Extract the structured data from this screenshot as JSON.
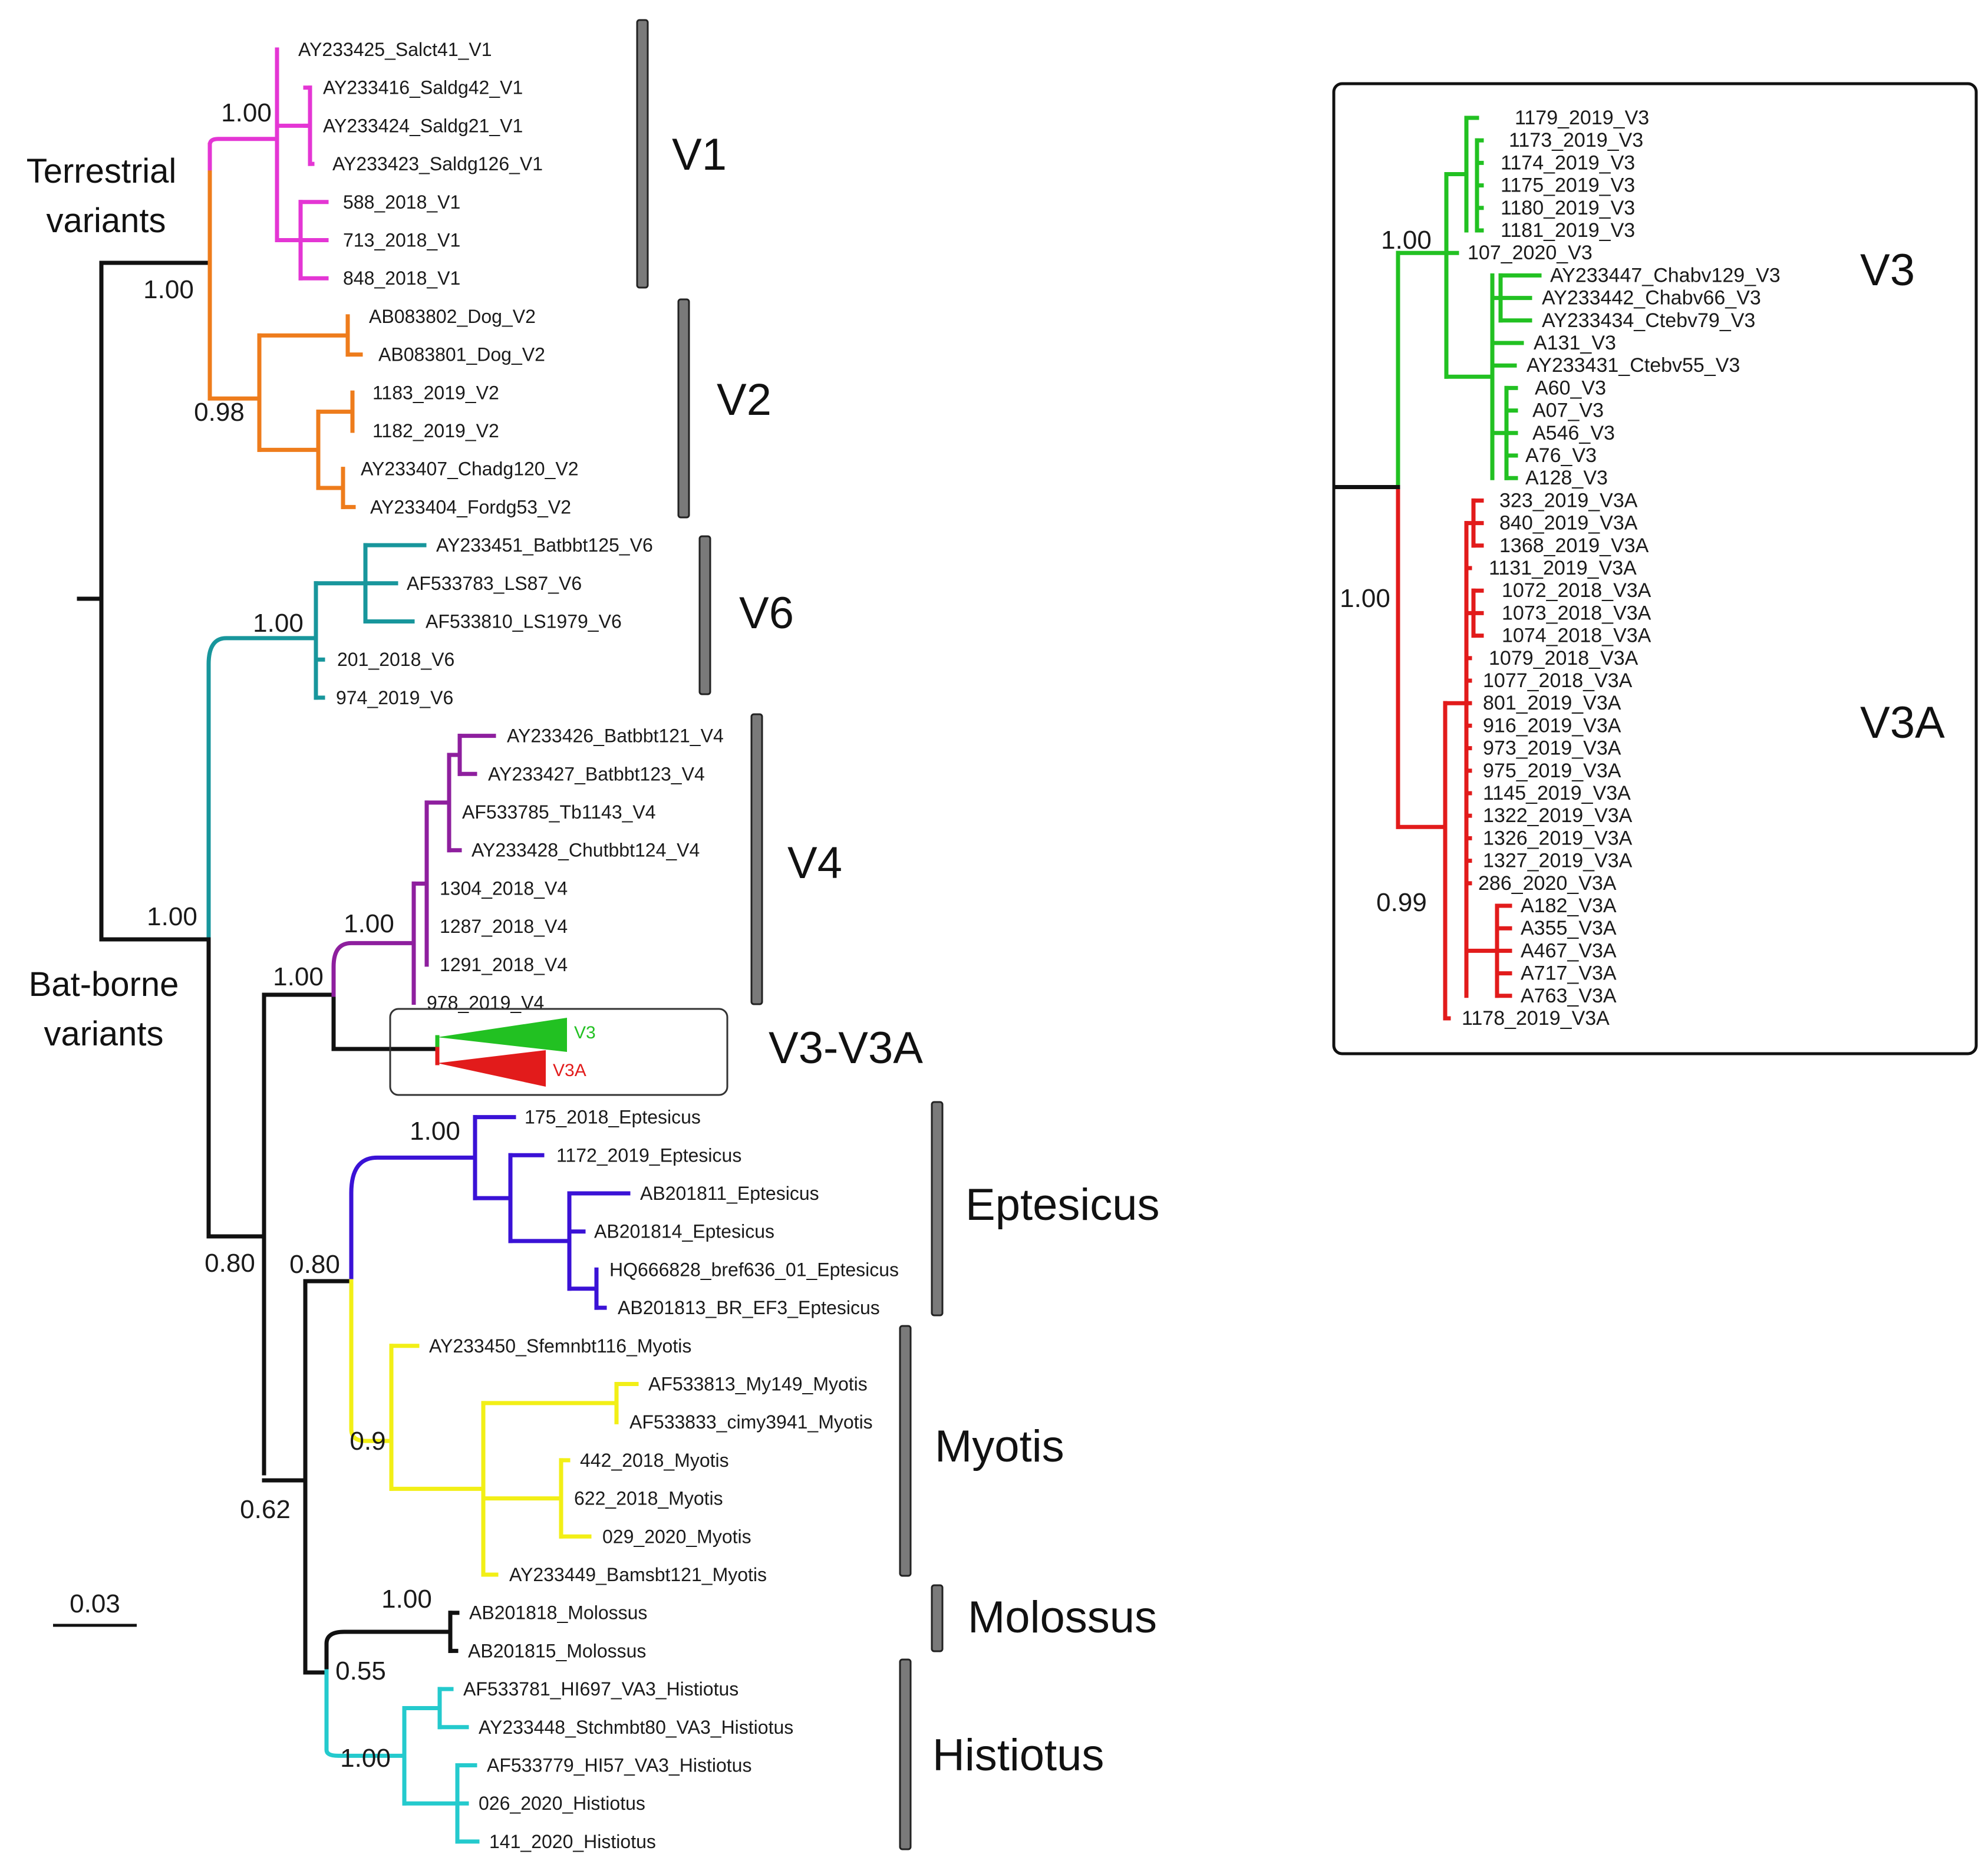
{
  "figure": {
    "colors": {
      "root": "#111111",
      "V1": "#e436d4",
      "terrestrial": "#ee7c1c",
      "V2": "#ee7c1c",
      "V6": "#18969c",
      "V4": "#8e1f9e",
      "V3": "#22c122",
      "V3A": "#e21b1b",
      "Eptesicus": "#3a12d6",
      "Myotis": "#f2ef16",
      "Molossus": "#111111",
      "Histiotus": "#24cacd"
    },
    "side_labels": {
      "terrestrial": [
        "Terrestrial",
        "variants"
      ],
      "bat_borne": [
        "Bat-borne",
        "variants"
      ]
    },
    "scale_bar": {
      "label": "0.03"
    },
    "groups": [
      {
        "name": "V1",
        "label": "V1"
      },
      {
        "name": "V2",
        "label": "V2"
      },
      {
        "name": "V6",
        "label": "V6"
      },
      {
        "name": "V4",
        "label": "V4"
      },
      {
        "name": "V3-V3A",
        "label": "V3-V3A"
      },
      {
        "name": "Eptesicus",
        "label": "Eptesicus"
      },
      {
        "name": "Myotis",
        "label": "Myotis"
      },
      {
        "name": "Molossus",
        "label": "Molossus"
      },
      {
        "name": "Histiotus",
        "label": "Histiotus"
      }
    ],
    "collapsed": {
      "v3_label": "V3",
      "v3a_label": "V3A"
    },
    "supports": {
      "terrestrial_root": "1.00",
      "v1_clade": "1.00",
      "v2_clade": "0.98",
      "bat_root": "1.00",
      "v6_clade": "1.00",
      "v4_v3_clade": "1.00",
      "v4_clade": "1.00",
      "core_bat": "0.80",
      "eptesicus_myotis": "0.80",
      "eptesicus_clade": "1.00",
      "myotis_clade": "0.9",
      "lower_bat": "0.62",
      "molossus_histiotus": "0.55",
      "molossus_clade": "1.00",
      "histiotus_clade": "1.00"
    },
    "leaves": [
      "AY233425_Salct41_V1",
      "AY233416_Saldg42_V1",
      "AY233424_Saldg21_V1",
      "AY233423_Saldg126_V1",
      "588_2018_V1",
      "713_2018_V1",
      "848_2018_V1",
      "AB083802_Dog_V2",
      "AB083801_Dog_V2",
      "1183_2019_V2",
      "1182_2019_V2",
      "AY233407_Chadg120_V2",
      "AY233404_Fordg53_V2",
      "AY233451_Batbbt125_V6",
      "AF533783_LS87_V6",
      "AF533810_LS1979_V6",
      "201_2018_V6",
      "974_2019_V6",
      "AY233426_Batbbt121_V4",
      "AY233427_Batbbt123_V4",
      "AF533785_Tb1143_V4",
      "AY233428_Chutbbt124_V4",
      "1304_2018_V4",
      "1287_2018_V4",
      "1291_2018_V4",
      "978_2019_V4",
      "175_2018_Eptesicus",
      "1172_2019_Eptesicus",
      "AB201811_Eptesicus",
      "AB201814_Eptesicus",
      "HQ666828_bref636_01_Eptesicus",
      "AB201813_BR_EF3_Eptesicus",
      "AY233450_Sfemnbt116_Myotis",
      "AF533813_My149_Myotis",
      "AF533833_cimy3941_Myotis",
      "442_2018_Myotis",
      "622_2018_Myotis",
      "029_2020_Myotis",
      "AY233449_Bamsbt121_Myotis",
      "AB201818_Molossus",
      "AB201815_Molossus",
      "AF533781_HI697_VA3_Histiotus",
      "AY233448_Stchmbt80_VA3_Histiotus",
      "AF533779_HI57_VA3_Histiotus",
      "026_2020_Histiotus",
      "141_2020_Histiotus"
    ],
    "inset": {
      "group_labels": {
        "v3": "V3",
        "v3a": "V3A"
      },
      "supports": {
        "root": "1.00",
        "v3": "1.00",
        "v3a": "0.99"
      },
      "leaves_v3": [
        "1179_2019_V3",
        "1173_2019_V3",
        "1174_2019_V3",
        "1175_2019_V3",
        "1180_2019_V3",
        "1181_2019_V3",
        "107_2020_V3",
        "AY233447_Chabv129_V3",
        "AY233442_Chabv66_V3",
        "AY233434_Ctebv79_V3",
        "A131_V3",
        "AY233431_Ctebv55_V3",
        "A60_V3",
        "A07_V3",
        "A546_V3",
        "A76_V3",
        "A128_V3"
      ],
      "leaves_v3a": [
        "323_2019_V3A",
        "840_2019_V3A",
        "1368_2019_V3A",
        "1131_2019_V3A",
        "1072_2018_V3A",
        "1073_2018_V3A",
        "1074_2018_V3A",
        "1079_2018_V3A",
        "1077_2018_V3A",
        "801_2019_V3A",
        "916_2019_V3A",
        "973_2019_V3A",
        "975_2019_V3A",
        "1145_2019_V3A",
        "1322_2019_V3A",
        "1326_2019_V3A",
        "1327_2019_V3A",
        "286_2020_V3A",
        "A182_V3A",
        "A355_V3A",
        "A467_V3A",
        "A717_V3A",
        "A763_V3A",
        "1178_2019_V3A"
      ]
    }
  }
}
